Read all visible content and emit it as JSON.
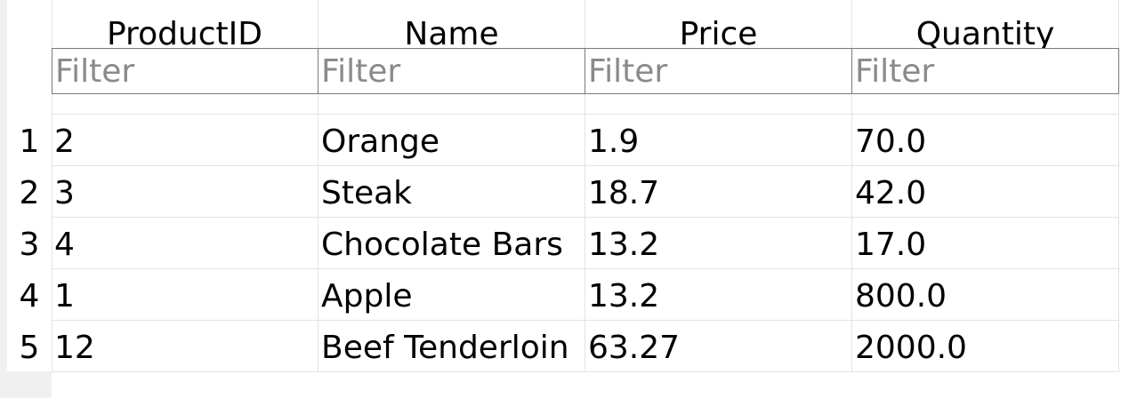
{
  "table": {
    "columns": [
      "ProductID",
      "Name",
      "Price",
      "Quantity"
    ],
    "filter_placeholder": "Filter",
    "row_numbers": [
      "1",
      "2",
      "3",
      "4",
      "5"
    ],
    "rows": [
      [
        "2",
        "Orange",
        "1.9",
        "70.0"
      ],
      [
        "3",
        "Steak",
        "18.7",
        "42.0"
      ],
      [
        "4",
        "Chocolate Bars",
        "13.2",
        "17.0"
      ],
      [
        "1",
        "Apple",
        "13.2",
        "800.0"
      ],
      [
        "12",
        "Beef Tenderloin",
        "63.27",
        "2000.0"
      ]
    ]
  }
}
